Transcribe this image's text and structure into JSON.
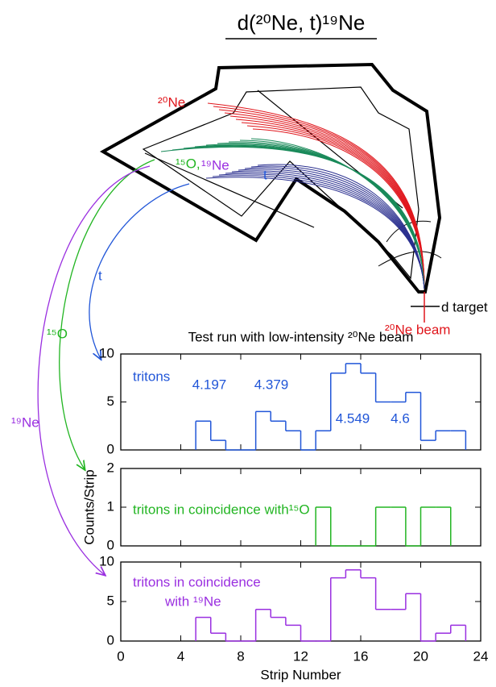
{
  "diagram": {
    "title": "d(²⁰Ne, t)¹⁹Ne",
    "labels": [
      "²⁰Ne",
      "¹⁵O,",
      "¹⁹Ne",
      "t",
      "t",
      "¹⁵O",
      "¹⁹Ne",
      "d target",
      "²⁰Ne beam"
    ]
  },
  "chart_data": [
    {
      "type": "histogram",
      "title": "Test run with low-intensity ²⁰Ne beam",
      "color": "#2156d8",
      "bins": [
        5,
        6,
        7,
        8,
        9,
        10,
        11,
        12,
        13,
        14,
        15,
        16,
        17,
        18,
        19,
        20,
        21,
        22,
        23
      ],
      "values": [
        3,
        1,
        0,
        0,
        4,
        3,
        2,
        0,
        2,
        8,
        9,
        8,
        5,
        5,
        6,
        1,
        2,
        2
      ],
      "xlim": [
        0,
        24
      ],
      "xticks": [
        0,
        4,
        8,
        12,
        16,
        20,
        24
      ],
      "ylim": [
        0,
        10
      ],
      "yticks": [
        0,
        5,
        10
      ],
      "annotations": [
        "tritons",
        "4.197",
        "4.379",
        "4.549",
        "4.6"
      ]
    },
    {
      "type": "histogram",
      "color": "#22b522",
      "ylabel": "Counts/Strip",
      "bins": [
        13,
        14,
        15,
        16,
        17,
        18,
        19,
        20,
        21,
        22
      ],
      "values": [
        1,
        0,
        0,
        0,
        1,
        1,
        0,
        1,
        1
      ],
      "xlim": [
        0,
        24
      ],
      "xticks": [
        0,
        4,
        8,
        12,
        16,
        20,
        24
      ],
      "ylim": [
        0,
        2
      ],
      "yticks": [
        0,
        1,
        2
      ],
      "annotations": [
        "tritons in coincidence with¹⁵O"
      ]
    },
    {
      "type": "histogram",
      "color": "#9a2fe0",
      "xlabel": "Strip Number",
      "bins": [
        5,
        6,
        7,
        8,
        9,
        10,
        11,
        12,
        13,
        14,
        15,
        16,
        17,
        18,
        19,
        20,
        21,
        22,
        23
      ],
      "values": [
        3,
        1,
        0,
        0,
        4,
        3,
        2,
        0,
        0,
        8,
        9,
        8,
        4,
        4,
        6,
        0,
        1,
        2
      ],
      "xlim": [
        0,
        24
      ],
      "xticks": [
        0,
        4,
        8,
        12,
        16,
        20,
        24
      ],
      "ylim": [
        0,
        10
      ],
      "yticks": [
        0,
        5,
        10
      ],
      "annotations": [
        "tritons in coincidence",
        "with ¹⁹Ne"
      ]
    }
  ]
}
